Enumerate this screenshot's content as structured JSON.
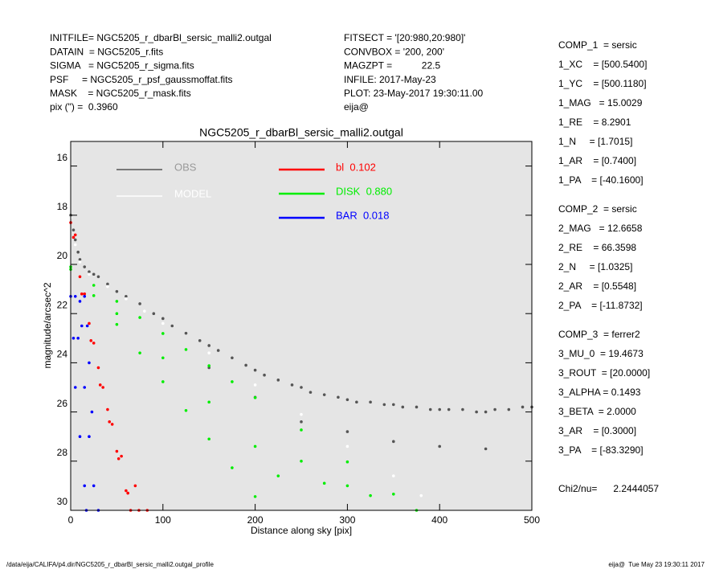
{
  "header": {
    "left": [
      "INITFILE= NGC5205_r_dbarBl_sersic_malli2.outgal",
      "DATAIN  = NGC5205_r.fits",
      "SIGMA   = NGC5205_r_sigma.fits",
      "PSF     = NGC5205_r_psf_gaussmoffat.fits",
      "MASK    = NGC5205_r_mask.fits",
      "pix (\") =  0.3960"
    ],
    "middle": [
      "FITSECT = '[20:980,20:980]'",
      "CONVBOX = '200, 200'",
      "MAGZPT =           22.5",
      "INFILE: 2017-May-23",
      "PLOT: 23-May-2017 19:30:11.00",
      "eija@"
    ],
    "right": [
      [
        "COMP_1  = sersic",
        "1_XC    = [500.5400]",
        "1_YC    = [500.1180]",
        "1_MAG   = 15.0029",
        "1_RE    = 8.2901",
        "1_N     = [1.7015]",
        "1_AR    = [0.7400]",
        "1_PA    = [-40.1600]"
      ],
      [
        "COMP_2  = sersic",
        "2_MAG   = 12.6658",
        "2_RE    = 66.3598",
        "2_N     = [1.0325]",
        "2_AR    = [0.5548]",
        "2_PA    = [-11.8732]"
      ],
      [
        "COMP_3  = ferrer2",
        "3_MU_0  = 19.4673",
        "3_ROUT  = [20.0000]",
        "3_ALPHA = 0.1493",
        "3_BETA  = 2.0000",
        "3_AR    = [0.3000]",
        "3_PA    = [-83.3290]"
      ],
      [
        "Chi2/nu=      2.2444057"
      ]
    ]
  },
  "footer": {
    "left": "/data/eija/CALIFA/p4.dir/NGC5205_r_dbarBl_sersic_malli2.outgal_profile",
    "right": "eija@  Tue May 23 19:30:11 2017"
  },
  "chart_data": {
    "type": "scatter",
    "title": "NGC5205_r_dbarBl_sersic_malli2.outgal",
    "x_label": "Distance along sky [pix]",
    "y_label": "magnitude/arcsec^2",
    "xlim": [
      0,
      500
    ],
    "xticks": [
      0,
      100,
      200,
      300,
      400,
      500
    ],
    "ylim": [
      30,
      15
    ],
    "yticks": [
      16,
      18,
      20,
      22,
      24,
      26,
      28,
      30
    ],
    "series": [
      {
        "name": "OBS",
        "color": "#555555",
        "x": [
          0,
          3,
          5,
          8,
          10,
          15,
          20,
          25,
          30,
          40,
          50,
          60,
          75,
          90,
          100,
          110,
          125,
          140,
          150,
          160,
          175,
          190,
          200,
          210,
          225,
          240,
          250,
          260,
          275,
          290,
          300,
          310,
          325,
          340,
          350,
          360,
          375,
          390,
          400,
          410,
          425,
          440,
          450,
          460,
          475,
          490,
          500,
          150,
          200,
          250,
          300,
          350,
          400,
          450
        ],
        "values": [
          18,
          18.6,
          19,
          19.5,
          19.8,
          20.1,
          20.3,
          20.4,
          20.5,
          20.8,
          21.1,
          21.3,
          21.6,
          22,
          22.2,
          22.5,
          22.8,
          23.1,
          23.3,
          23.5,
          23.8,
          24.1,
          24.3,
          24.5,
          24.7,
          24.9,
          25,
          25.2,
          25.3,
          25.4,
          25.5,
          25.6,
          25.6,
          25.7,
          25.7,
          25.8,
          25.8,
          25.9,
          25.9,
          25.9,
          25.9,
          26,
          26,
          25.9,
          25.9,
          25.8,
          25.8,
          24.2,
          25.4,
          26.4,
          26.8,
          27.2,
          27.4,
          27.5
        ]
      },
      {
        "name": "MODEL",
        "color": "#ffffff",
        "x": [
          0,
          5,
          10,
          20,
          40,
          60,
          80,
          100,
          150,
          200,
          250,
          300,
          350,
          380
        ],
        "values": [
          18.1,
          19.2,
          19.9,
          20.4,
          20.9,
          21.4,
          21.9,
          22.4,
          23.6,
          24.9,
          26.1,
          27.4,
          28.6,
          29.4
        ]
      },
      {
        "name": "bl  0.102",
        "color": "#ff0000",
        "x": [
          0,
          10,
          20,
          30,
          40,
          50,
          60,
          65,
          5,
          15,
          25,
          35,
          45,
          55,
          70,
          83,
          3,
          12,
          22,
          32,
          42,
          52,
          62,
          74
        ],
        "values": [
          18.3,
          20.5,
          22.4,
          24.2,
          25.9,
          27.6,
          29.2,
          30,
          18.8,
          21.2,
          23.2,
          25,
          26.5,
          27.8,
          29,
          30,
          18.9,
          21.2,
          23.1,
          24.9,
          26.4,
          27.9,
          29.3,
          30
        ]
      },
      {
        "name": "DISK  0.880",
        "color": "#00ee00",
        "x": [
          0,
          25,
          50,
          75,
          100,
          125,
          150,
          175,
          200,
          0,
          25,
          50,
          75,
          100,
          125,
          150,
          175,
          200,
          250,
          300,
          350,
          375,
          50,
          100,
          150,
          200,
          250,
          300,
          225,
          275,
          325
        ],
        "values": [
          20.1,
          21.27,
          22.44,
          23.6,
          24.77,
          25.94,
          27.1,
          28.27,
          29.44,
          20.2,
          20.85,
          21.5,
          22.16,
          22.81,
          23.46,
          24.12,
          24.77,
          25.42,
          26.73,
          28.03,
          29.34,
          30,
          22,
          23.8,
          25.6,
          27.4,
          28,
          29,
          28.6,
          28.9,
          29.4
        ]
      },
      {
        "name": "BAR  0.018",
        "color": "#0000ff",
        "x": [
          0,
          5,
          10,
          15,
          3,
          8,
          12,
          18,
          5,
          15,
          20,
          10,
          20,
          23,
          15,
          25,
          17,
          30
        ],
        "values": [
          21.3,
          21.3,
          21.5,
          21.3,
          23,
          23,
          22.5,
          22.5,
          25,
          25,
          24,
          27,
          27,
          26,
          29,
          29,
          30,
          30
        ]
      }
    ]
  }
}
